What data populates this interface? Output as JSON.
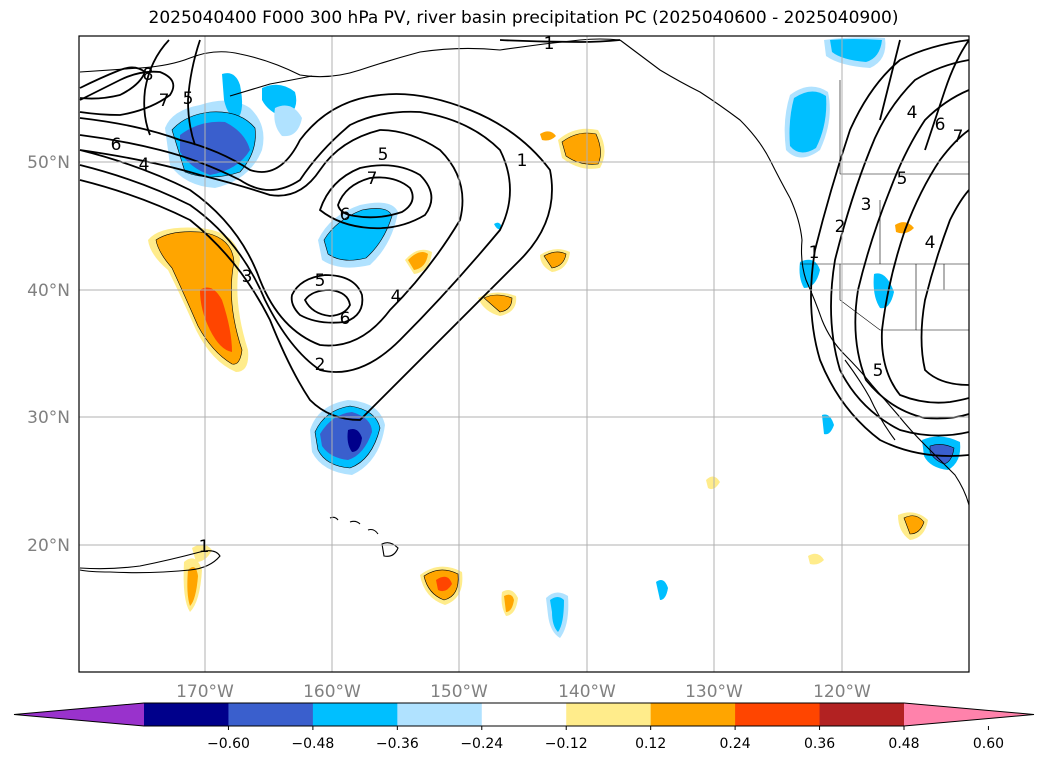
{
  "title": "2025040400 F000 300 hPa PV, river basin precipitation PC (2025040600 - 2025040900)",
  "map": {
    "lon_range": [
      -180,
      -110
    ],
    "lat_range": [
      10,
      60
    ],
    "lat_labels": [
      "20°N",
      "30°N",
      "40°N",
      "50°N"
    ],
    "lon_labels": [
      "170°W",
      "160°W",
      "150°W",
      "140°W",
      "130°W",
      "120°W"
    ],
    "contour_labels": [
      "1",
      "8",
      "7",
      "5",
      "6",
      "4",
      "5",
      "7",
      "6",
      "3",
      "5",
      "6",
      "4",
      "2",
      "1",
      "1",
      "1",
      "2",
      "3",
      "5",
      "4",
      "6",
      "4",
      "7",
      "5"
    ]
  },
  "colorbar": {
    "ticks": [
      "−0.60",
      "−0.48",
      "−0.36",
      "−0.24",
      "−0.12",
      "0.12",
      "0.24",
      "0.36",
      "0.48",
      "0.60"
    ],
    "colors": [
      "#9932cc",
      "#00008b",
      "#3a5fcd",
      "#00bfff",
      "#b0e2ff",
      "#ffffff",
      "#ffec8b",
      "#ffa500",
      "#ff4500",
      "#b22222",
      "#ff82ab"
    ]
  }
}
